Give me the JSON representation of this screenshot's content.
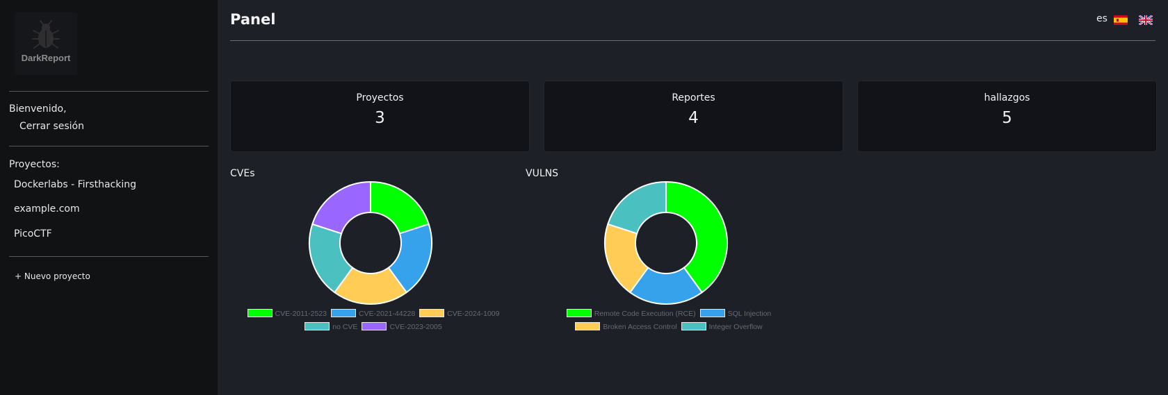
{
  "sidebar": {
    "logo_text": "DarkReport",
    "welcome": "Bienvenido,",
    "logout": "Cerrar sesión",
    "projects_heading": "Proyectos:",
    "projects": [
      "Dockerlabs - Firsthacking",
      "example.com",
      "PicoCTF"
    ],
    "new_project": "+ Nuevo proyecto"
  },
  "header": {
    "title": "Panel",
    "lang_code": "es",
    "flags": [
      "flag-es-icon",
      "flag-gb-icon"
    ]
  },
  "cards": [
    {
      "label": "Proyectos",
      "value": "3"
    },
    {
      "label": "Reportes",
      "value": "4"
    },
    {
      "label": "hallazgos",
      "value": "5"
    }
  ],
  "chart_data": [
    {
      "type": "pie",
      "title": "CVEs",
      "categories": [
        "CVE-2011-2523",
        "CVE-2021-44228",
        "CVE-2024-1009",
        "no CVE",
        "CVE-2023-2005"
      ],
      "values": [
        1,
        1,
        1,
        1,
        1
      ],
      "colors": [
        "#00ff00",
        "#36a2eb",
        "#ffcd56",
        "#4bc0c0",
        "#9966ff"
      ],
      "legend": "bottom"
    },
    {
      "type": "pie",
      "title": "VULNS",
      "categories": [
        "Remote Code Execution (RCE)",
        "SQL Injection",
        "Broken Access Control",
        "Integer Overflow"
      ],
      "values": [
        2,
        1,
        1,
        1
      ],
      "colors": [
        "#00ff00",
        "#36a2eb",
        "#ffcd56",
        "#4bc0c0"
      ],
      "legend": "bottom"
    }
  ]
}
